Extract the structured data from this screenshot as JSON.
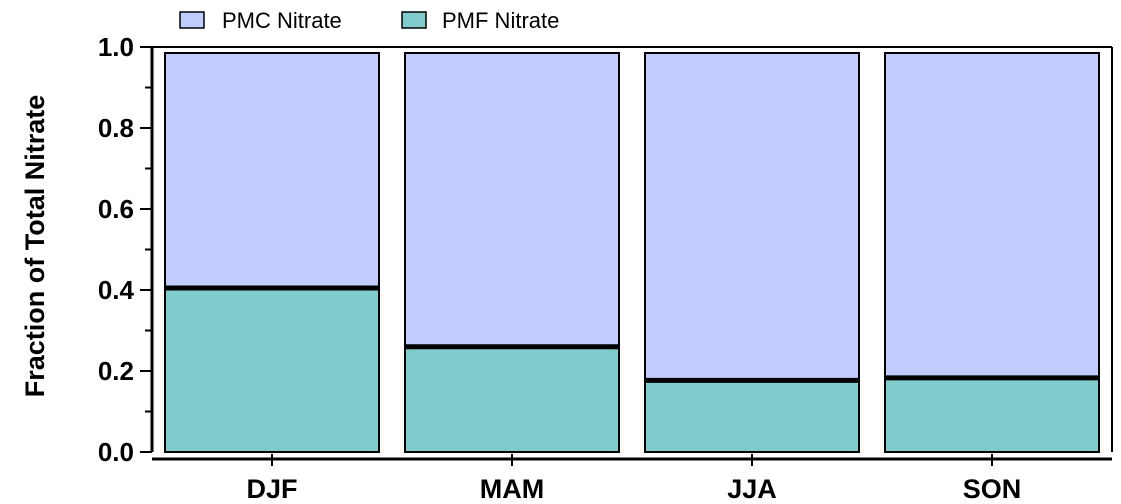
{
  "chart_data": {
    "type": "bar",
    "stacked": true,
    "categories": [
      "DJF",
      "MAM",
      "JJA",
      "SON"
    ],
    "series": [
      {
        "name": "PMC Nitrate",
        "values": [
          0.595,
          0.74,
          0.823,
          0.817
        ],
        "color": "#c0ccfc"
      },
      {
        "name": "PMF Nitrate",
        "values": [
          0.405,
          0.26,
          0.177,
          0.183
        ],
        "color": "#80cccc"
      }
    ],
    "xlabel": "",
    "ylabel": "Fraction of Total Nitrate",
    "ylim": [
      0,
      1.0
    ],
    "yticks": [
      "0.0",
      "0.2",
      "0.4",
      "0.6",
      "0.8",
      "1.0"
    ],
    "legend": "top-left",
    "grid": false
  }
}
